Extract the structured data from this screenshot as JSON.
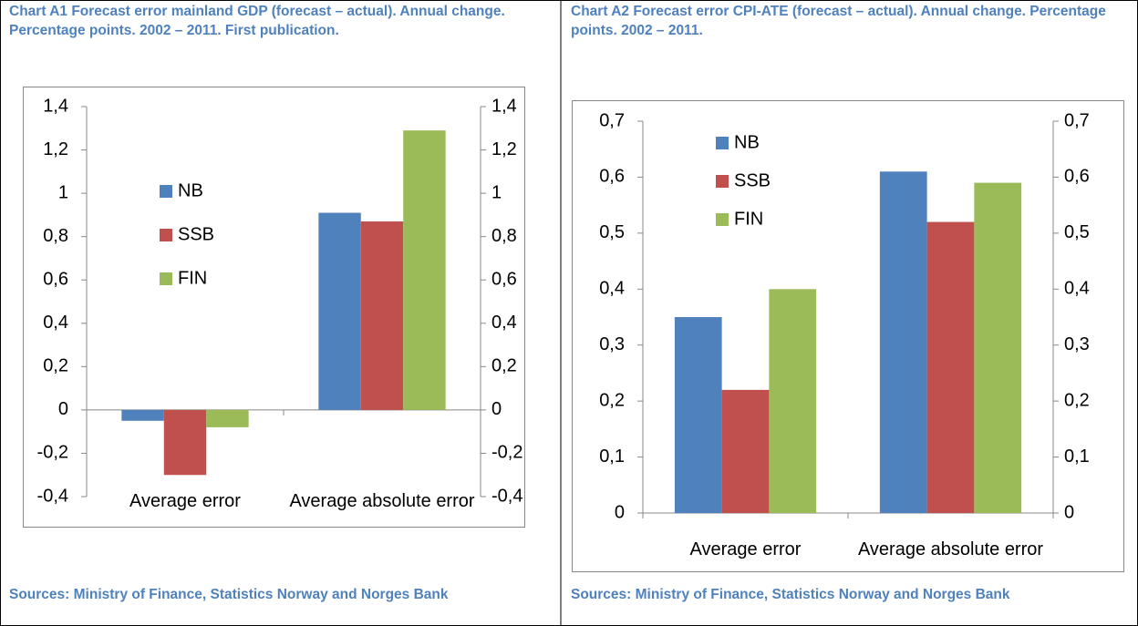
{
  "chart_data": [
    {
      "type": "bar",
      "title": "Chart A1 Forecast error mainland GDP (forecast – actual). Annual change. Percentage points. 2002 – 2011. First publication.",
      "source": "Sources: Ministry of Finance, Statistics Norway and Norges Bank",
      "categories": [
        "Average error",
        "Average absolute error"
      ],
      "series": [
        {
          "name": "NB",
          "color": "#4f81bd",
          "values": [
            -0.05,
            0.91
          ]
        },
        {
          "name": "SSB",
          "color": "#c0504d",
          "values": [
            -0.3,
            0.87
          ]
        },
        {
          "name": "FIN",
          "color": "#9bbb59",
          "values": [
            -0.08,
            1.29
          ]
        }
      ],
      "ylim": [
        -0.4,
        1.4
      ],
      "yticks": [
        {
          "value": -0.4,
          "label": "-0,4"
        },
        {
          "value": -0.2,
          "label": "-0,2"
        },
        0,
        {
          "value": 0.2,
          "label": "0,2"
        },
        {
          "value": 0.4,
          "label": "0,4"
        },
        {
          "value": 0.6,
          "label": "0,6"
        },
        {
          "value": 0.8,
          "label": "0,8"
        },
        1,
        {
          "value": 1.2,
          "label": "1,2"
        },
        {
          "value": 1.4,
          "label": "1,4"
        }
      ],
      "grid": false
    },
    {
      "type": "bar",
      "title": "Chart A2 Forecast error CPI-ATE (forecast – actual). Annual change. Percentage points. 2002 – 2011.",
      "source": "Sources: Ministry of Finance, Statistics Norway and Norges Bank",
      "categories": [
        "Average error",
        "Average absolute error"
      ],
      "series": [
        {
          "name": "NB",
          "color": "#4f81bd",
          "values": [
            0.35,
            0.61
          ]
        },
        {
          "name": "SSB",
          "color": "#c0504d",
          "values": [
            0.22,
            0.52
          ]
        },
        {
          "name": "FIN",
          "color": "#9bbb59",
          "values": [
            0.4,
            0.59
          ]
        }
      ],
      "ylim": [
        0,
        0.7
      ],
      "yticks": [
        0,
        {
          "value": 0.1,
          "label": "0,1"
        },
        {
          "value": 0.2,
          "label": "0,2"
        },
        {
          "value": 0.3,
          "label": "0,3"
        },
        {
          "value": 0.4,
          "label": "0,4"
        },
        {
          "value": 0.5,
          "label": "0,5"
        },
        {
          "value": 0.6,
          "label": "0,6"
        },
        {
          "value": 0.7,
          "label": "0,7"
        }
      ],
      "grid": false
    }
  ]
}
